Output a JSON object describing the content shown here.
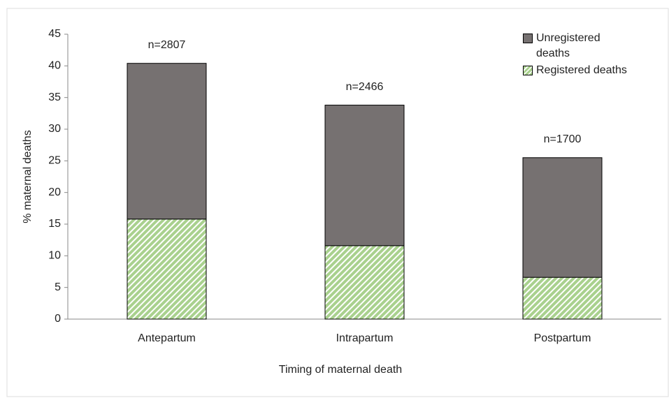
{
  "chart_data": {
    "type": "stacked_bar",
    "x_label": "Timing of maternal death",
    "y_label": "% maternal deaths",
    "categories": [
      "Antepartum",
      "Intrapartum",
      "Postpartum"
    ],
    "annotations": [
      "n=2807",
      "n=2466",
      "n=1700"
    ],
    "series": [
      {
        "name": "Registered deaths",
        "color": "#a9d18e",
        "pattern": "hatch",
        "values": [
          15.8,
          11.6,
          6.6
        ]
      },
      {
        "name": "Unregistered deaths",
        "color": "#767171",
        "values": [
          24.6,
          22.2,
          18.9
        ]
      }
    ],
    "ylim": [
      0,
      45
    ],
    "yticks": [
      0,
      5,
      10,
      15,
      20,
      25,
      30,
      35,
      40,
      45
    ],
    "legend": "top-right"
  }
}
